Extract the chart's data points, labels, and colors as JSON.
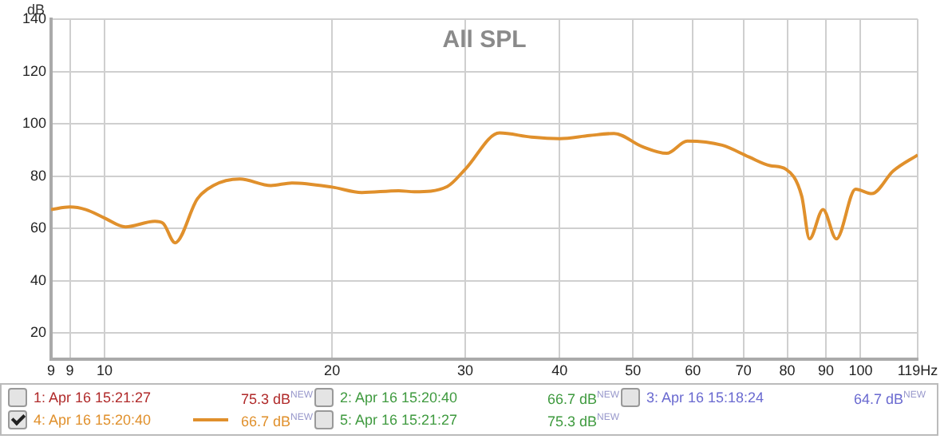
{
  "chart_data": {
    "type": "line",
    "title": "All SPL",
    "ylabel": "dB",
    "x": [
      8.5,
      9.0,
      9.45,
      10,
      10.66,
      11.66,
      11.95,
      12.4,
      13.27,
      13.93,
      15.1,
      16.6,
      17.7,
      20,
      21.9,
      24.5,
      25.7,
      28.4,
      30,
      33.3,
      36.7,
      40,
      43.8,
      47.2,
      51.5,
      55.4,
      59,
      65.6,
      71.2,
      75.9,
      79.7,
      83.6,
      85.6,
      89.2,
      92.9,
      98.5,
      103.5,
      110.5,
      119
    ],
    "series": [
      {
        "name": "4: Apr 16 15:20:40",
        "color": "#e0902c",
        "values": [
          67.2,
          68.2,
          67.2,
          64,
          60.6,
          62.7,
          62,
          54.5,
          71.3,
          76.4,
          78.9,
          76.4,
          77.4,
          75.8,
          73.7,
          74.4,
          74,
          76,
          82.6,
          96.5,
          94.9,
          94.3,
          95.5,
          96.3,
          91.2,
          88.7,
          93.4,
          91.8,
          87.3,
          84,
          82.6,
          72.3,
          56,
          67.2,
          56,
          75,
          73.3,
          82,
          88.1
        ]
      }
    ],
    "log": "x",
    "xlim": [
      8.5,
      119
    ],
    "ylim": [
      10,
      140
    ],
    "xticks": [
      {
        "value": 8.5,
        "label": "9"
      },
      9,
      10,
      20,
      30,
      40,
      50,
      60,
      70,
      80,
      90,
      100,
      {
        "value": 119,
        "label": "119Hz"
      }
    ],
    "yticks": [
      20,
      40,
      60,
      80,
      100,
      120,
      140
    ],
    "grid": true,
    "legend": "bottom",
    "marker": "none",
    "line_style": "solid",
    "annotations": [
      "1: Apr 16 15:21:27",
      "75.3 dB$^{NEW}$",
      "2: Apr 16 15:20:40",
      "66.7 dB$^{NEW}$",
      "3: Apr 16 15:18:24",
      "64.7 dB$^{NEW}$",
      "66.7 dB$^{NEW}$",
      "5: Apr 16 15:21:27",
      "75.3 dB$^{NEW}$"
    ]
  }
}
